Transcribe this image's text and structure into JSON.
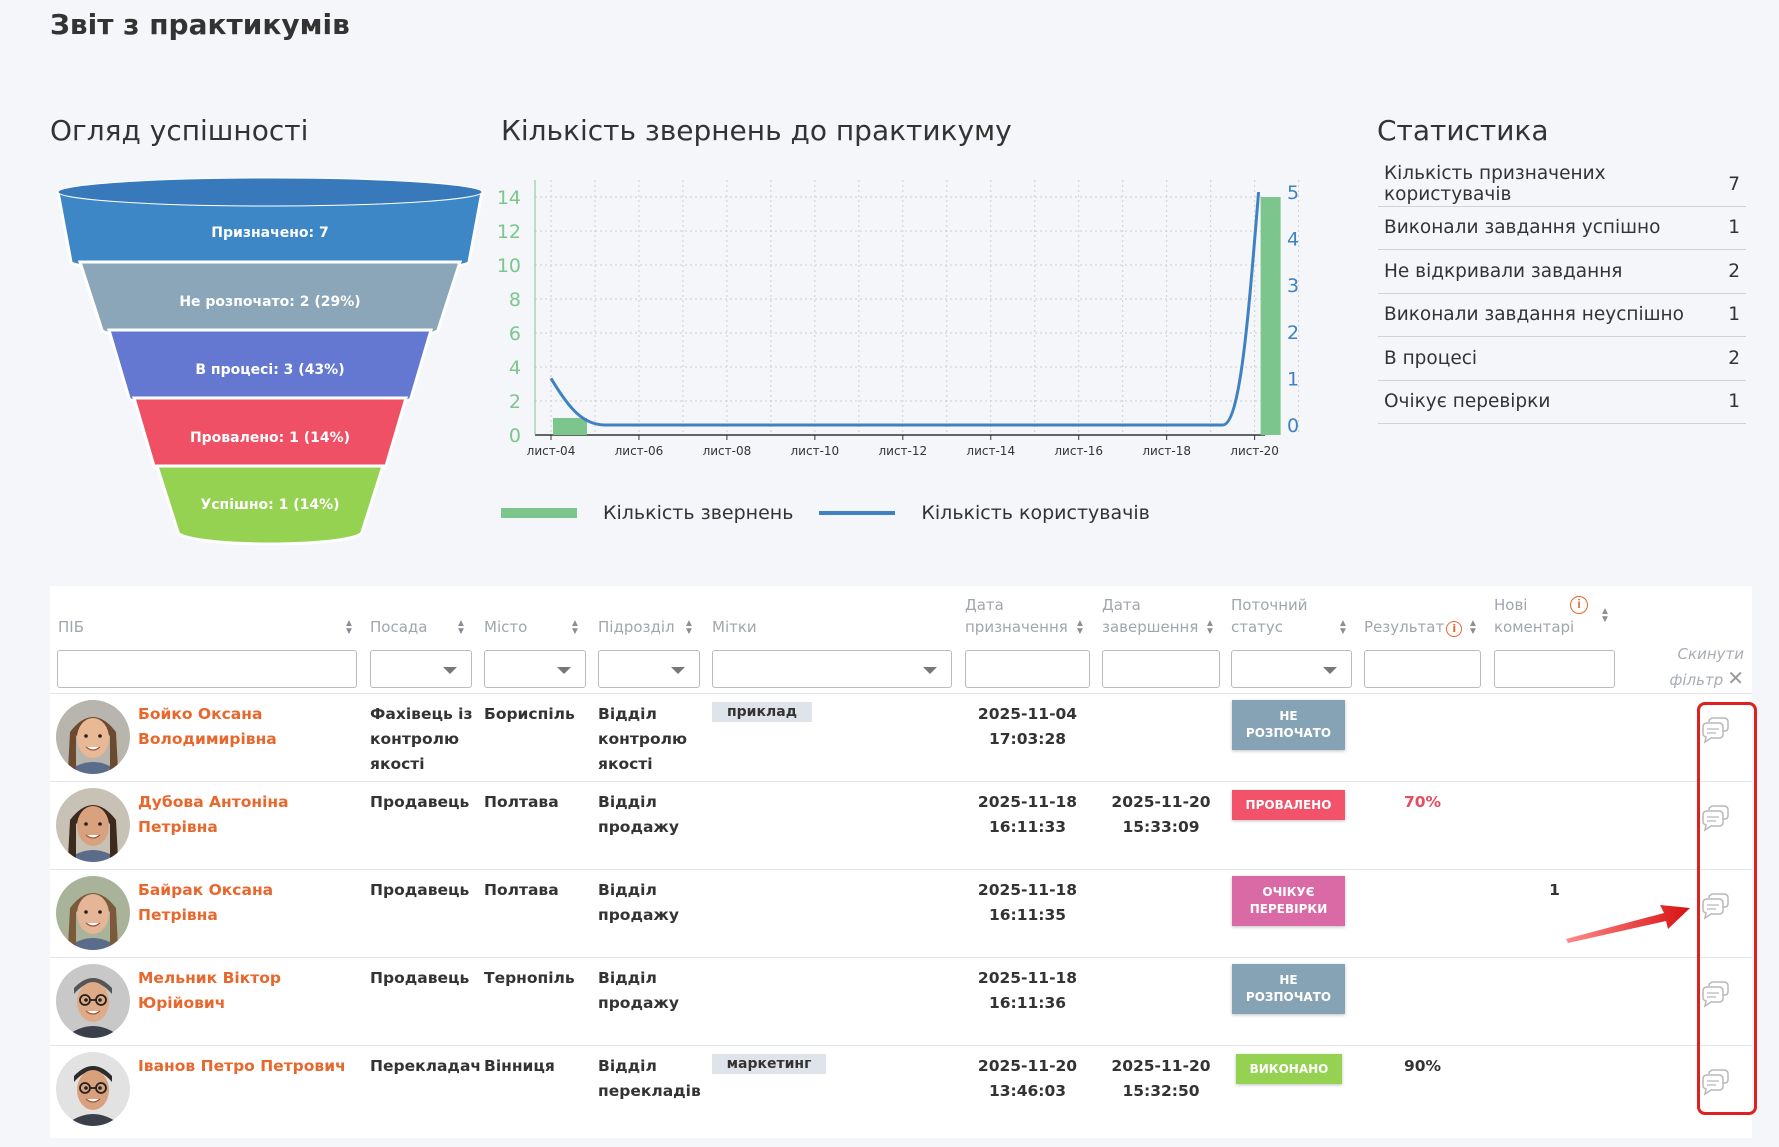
{
  "page": {
    "title": "Звіт з практикумів"
  },
  "sections": {
    "funnel_title": "Огляд успішності",
    "chart_title": "Кількість звернень до практикуму",
    "stats_title": "Статистика"
  },
  "funnel": [
    {
      "label": "Призначено: 7",
      "color": "#3e87c7"
    },
    {
      "label": "Не розпочато: 2 (29%)",
      "color": "#8aa6b8"
    },
    {
      "label": "В процесі: 3 (43%)",
      "color": "#6478d2"
    },
    {
      "label": "Провалено: 1 (14%)",
      "color": "#ef5065"
    },
    {
      "label": "Успішно: 1 (14%)",
      "color": "#96d252"
    }
  ],
  "chart_data": {
    "type": "line",
    "x_ticks": [
      "лист-04",
      "лист-06",
      "лист-08",
      "лист-10",
      "лист-12",
      "лист-14",
      "лист-16",
      "лист-18",
      "лист-20"
    ],
    "y_left_ticks": [
      "0",
      "2",
      "4",
      "6",
      "8",
      "10",
      "12",
      "14"
    ],
    "y_right_ticks": [
      "0",
      "1",
      "2",
      "3",
      "4",
      "5"
    ],
    "ylim_left": [
      0,
      15
    ],
    "ylim_right": [
      0,
      5
    ],
    "series": [
      {
        "name": "Кількість звернень",
        "kind": "bar",
        "axis": "left",
        "color": "#7cc68d",
        "x": [
          "2025-11-04",
          "2025-11-20"
        ],
        "values": [
          1,
          14
        ]
      },
      {
        "name": "Кількість користувачів",
        "kind": "line",
        "axis": "right",
        "color": "#3f82c4",
        "x": [
          "2025-11-04",
          "2025-11-05",
          "2025-11-19",
          "2025-11-20"
        ],
        "values": [
          1,
          0,
          0,
          5
        ]
      }
    ],
    "legend_position": "bottom",
    "grid": true
  },
  "legend": {
    "bar_label": "Кількість звернень",
    "line_label": "Кількість користувачів"
  },
  "stats": [
    {
      "label": "Кількість призначених користувачів",
      "value": "7"
    },
    {
      "label": "Виконали завдання успішно",
      "value": "1"
    },
    {
      "label": "Не відкривали завдання",
      "value": "2"
    },
    {
      "label": "Виконали завдання неуспішно",
      "value": "1"
    },
    {
      "label": "В процесі",
      "value": "2"
    },
    {
      "label": "Очікує перевірки",
      "value": "1"
    }
  ],
  "table": {
    "headers": {
      "name": "ПІБ",
      "position": "Посада",
      "city": "Місто",
      "department": "Підрозділ",
      "tags": "Мітки",
      "assigned_1": "Дата",
      "assigned_2": "призначення",
      "completed_1": "Дата",
      "completed_2": "завершення",
      "status_1": "Поточний",
      "status_2": "статус",
      "result": "Результат",
      "comments_1": "Нові",
      "comments_2": "коментарі"
    },
    "reset_1": "Скинути",
    "reset_2": "фільтр",
    "rows": [
      {
        "name_1": "Бойко Оксана",
        "name_2": "Володимирівна",
        "position_1": "Фахівець із",
        "position_2": "контролю",
        "position_3": "якості",
        "city": "Бориспіль",
        "dept_1": "Відділ",
        "dept_2": "контролю",
        "dept_3": "якості",
        "tag": "приклад",
        "assigned_date": "2025-11-04",
        "assigned_time": "17:03:28",
        "completed_date": "",
        "completed_time": "",
        "status_1": "НЕ",
        "status_2": "РОЗПОЧАТО",
        "status_color": "#85a3b5",
        "result": "",
        "result_color": "#333",
        "comments": ""
      },
      {
        "name_1": "Дубова Антоніна Петрівна",
        "name_2": "",
        "position_1": "Продавець",
        "position_2": "",
        "position_3": "",
        "city": "Полтава",
        "dept_1": "Відділ",
        "dept_2": "продажу",
        "dept_3": "",
        "tag": "",
        "assigned_date": "2025-11-18",
        "assigned_time": "16:11:33",
        "completed_date": "2025-11-20",
        "completed_time": "15:33:09",
        "status_1": "ПРОВАЛЕНО",
        "status_2": "",
        "status_color": "#f2536a",
        "result": "70%",
        "result_color": "#e84a5f",
        "comments": ""
      },
      {
        "name_1": "Байрак Оксана Петрівна",
        "name_2": "",
        "position_1": "Продавець",
        "position_2": "",
        "position_3": "",
        "city": "Полтава",
        "dept_1": "Відділ",
        "dept_2": "продажу",
        "dept_3": "",
        "tag": "",
        "assigned_date": "2025-11-18",
        "assigned_time": "16:11:35",
        "completed_date": "",
        "completed_time": "",
        "status_1": "ОЧІКУЄ",
        "status_2": "ПЕРЕВІРКИ",
        "status_color": "#d96aa6",
        "result": "",
        "result_color": "#333",
        "comments": "1"
      },
      {
        "name_1": "Мельник Віктор Юрійович",
        "name_2": "",
        "position_1": "Продавець",
        "position_2": "",
        "position_3": "",
        "city": "Тернопіль",
        "dept_1": "Відділ",
        "dept_2": "продажу",
        "dept_3": "",
        "tag": "",
        "assigned_date": "2025-11-18",
        "assigned_time": "16:11:36",
        "completed_date": "",
        "completed_time": "",
        "status_1": "НЕ",
        "status_2": "РОЗПОЧАТО",
        "status_color": "#85a3b5",
        "result": "",
        "result_color": "#333",
        "comments": ""
      },
      {
        "name_1": "Іванов Петро Петрович",
        "name_2": "",
        "position_1": "Перекладач",
        "position_2": "",
        "position_3": "",
        "city": "Вінниця",
        "dept_1": "Відділ",
        "dept_2": "перекладів",
        "dept_3": "",
        "tag": "маркетинг",
        "assigned_date": "2025-11-20",
        "assigned_time": "13:46:03",
        "completed_date": "2025-11-20",
        "completed_time": "15:32:50",
        "status_1": "ВИКОНАНО",
        "status_2": "",
        "status_color": "#96d252",
        "result": "90%",
        "result_color": "#333",
        "comments": ""
      }
    ]
  }
}
